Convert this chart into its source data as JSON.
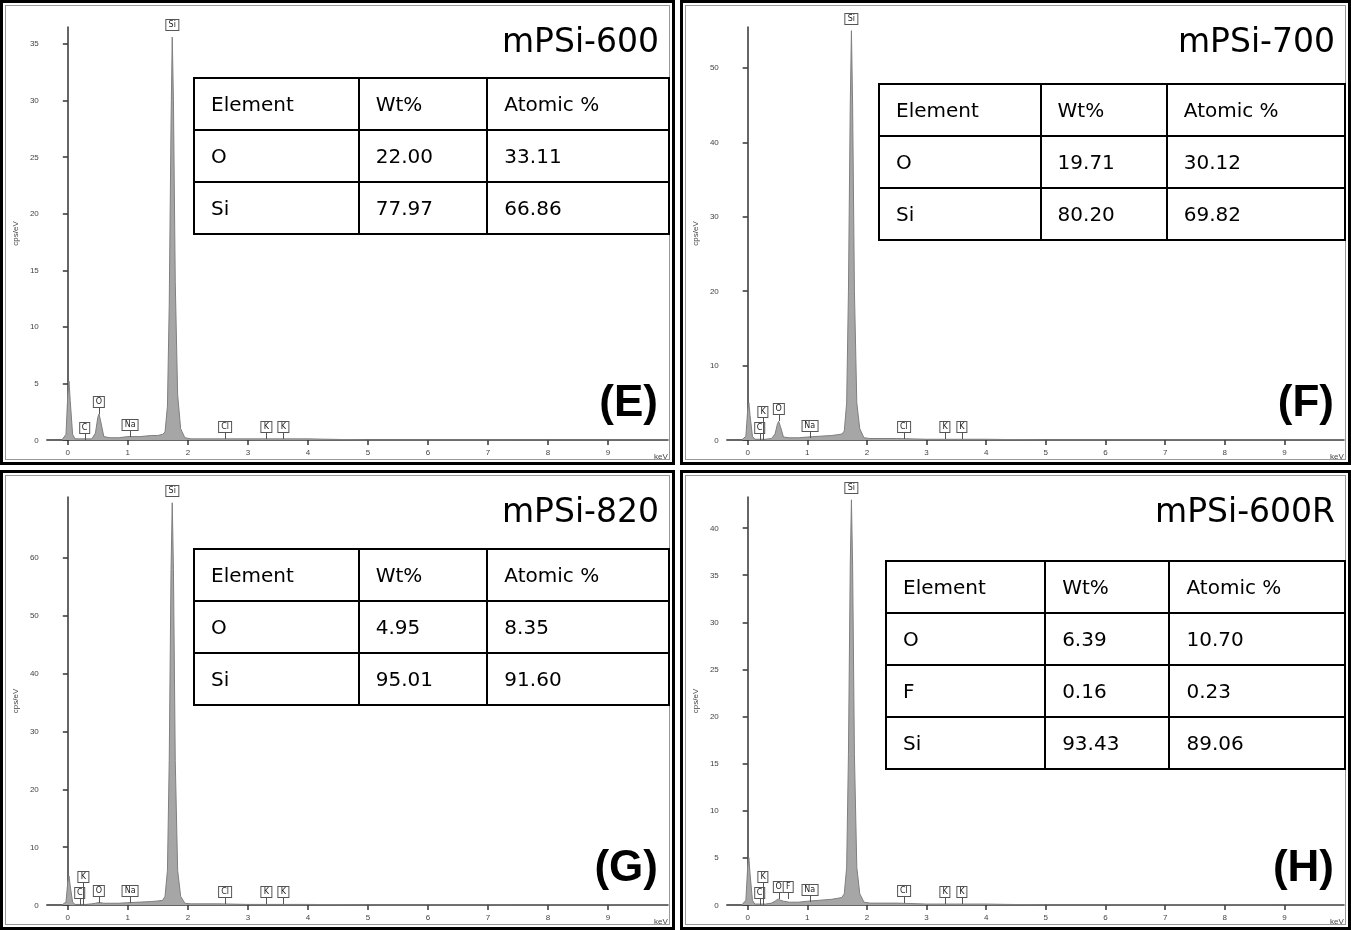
{
  "chart_data": [
    {
      "type": "area",
      "title": "mPSi-600",
      "xlabel": "keV",
      "ylabel": "cps/eV",
      "color": "#a6a6a6",
      "x": [
        -0.1,
        -0.03,
        0,
        0.02,
        0.04,
        0.08,
        0.12,
        0.2,
        0.3,
        0.4,
        0.46,
        0.5,
        0.52,
        0.55,
        0.6,
        0.7,
        0.85,
        1.0,
        1.2,
        1.4,
        1.5,
        1.58,
        1.62,
        1.66,
        1.69,
        1.72,
        1.74,
        1.76,
        1.79,
        1.83,
        1.88,
        1.95,
        2.05,
        2.5,
        3,
        4,
        5,
        6,
        7,
        8,
        9,
        10
      ],
      "values": [
        0,
        0.5,
        4,
        5.2,
        3.5,
        0.5,
        0.1,
        0.1,
        0.1,
        0.1,
        0.6,
        2.0,
        2.3,
        1.6,
        0.3,
        0.2,
        0.2,
        0.3,
        0.3,
        0.4,
        0.4,
        0.5,
        0.7,
        3,
        12,
        28,
        35.6,
        30,
        14,
        4,
        1,
        0.2,
        0.1,
        0.1,
        0.1,
        0.1,
        0,
        0,
        0,
        0,
        0,
        0
      ],
      "xlim": [
        -0.35,
        10.0
      ],
      "xticks": [
        0,
        1,
        2,
        3,
        4,
        5,
        6,
        7,
        8,
        9
      ],
      "ylim": [
        0,
        36.5
      ],
      "yticks": [
        0,
        5,
        10,
        15,
        20,
        25,
        30,
        35
      ],
      "annotations": [
        "(E)",
        "Element",
        "Wt%",
        "Atomic %",
        "O",
        "22.00",
        "33.11",
        "Si",
        "77.97",
        "66.86",
        {
          "text": "C",
          "x": 0.28,
          "y": 0
        },
        {
          "text": "O",
          "x": 0.52,
          "y": 2.3
        },
        {
          "text": "Na",
          "x": 1.04,
          "y": 0.3
        },
        {
          "text": "Si",
          "x": 1.74,
          "y": 35.6
        },
        {
          "text": "Cl",
          "x": 2.62,
          "y": 0.1
        },
        {
          "text": "K",
          "x": 3.31,
          "y": 0.1
        },
        {
          "text": "K",
          "x": 3.59,
          "y": 0.1
        }
      ]
    },
    {
      "type": "area",
      "title": "mPSi-700",
      "xlabel": "keV",
      "ylabel": "cps/eV",
      "color": "#a6a6a6",
      "x": [
        -0.1,
        -0.03,
        0,
        0.02,
        0.04,
        0.08,
        0.12,
        0.2,
        0.3,
        0.4,
        0.46,
        0.5,
        0.52,
        0.55,
        0.6,
        0.7,
        0.85,
        1.0,
        1.2,
        1.4,
        1.5,
        1.58,
        1.62,
        1.66,
        1.69,
        1.72,
        1.74,
        1.76,
        1.79,
        1.83,
        1.88,
        1.95,
        2.05,
        2.5,
        3,
        4,
        5,
        6,
        7,
        8,
        9,
        10
      ],
      "values": [
        0,
        0.5,
        4,
        5,
        3.3,
        0.5,
        0.1,
        0.1,
        0.1,
        0.2,
        0.8,
        2.2,
        2.5,
        1.8,
        0.4,
        0.3,
        0.3,
        0.4,
        0.5,
        0.6,
        0.7,
        0.8,
        1.2,
        5,
        20,
        45,
        55,
        45,
        20,
        5,
        1.5,
        0.3,
        0.2,
        0.2,
        0.1,
        0.1,
        0,
        0,
        0,
        0,
        0,
        0
      ],
      "xlim": [
        -0.35,
        10.0
      ],
      "xticks": [
        0,
        1,
        2,
        3,
        4,
        5,
        6,
        7,
        8,
        9
      ],
      "ylim": [
        0,
        55.5
      ],
      "yticks": [
        0,
        10,
        20,
        30,
        40,
        50
      ],
      "annotations": [
        "(F)",
        "Element",
        "Wt%",
        "Atomic %",
        "O",
        "19.71",
        "30.12",
        "Si",
        "80.20",
        "69.82",
        {
          "text": "C",
          "x": 0.2,
          "y": 0
        },
        {
          "text": "K",
          "x": 0.26,
          "y": 0
        },
        {
          "text": "O",
          "x": 0.52,
          "y": 2.5
        },
        {
          "text": "Na",
          "x": 1.04,
          "y": 0.3
        },
        {
          "text": "Si",
          "x": 1.74,
          "y": 55
        },
        {
          "text": "Cl",
          "x": 2.62,
          "y": 0.2
        },
        {
          "text": "K",
          "x": 3.31,
          "y": 0.1
        },
        {
          "text": "K",
          "x": 3.59,
          "y": 0.1
        }
      ]
    },
    {
      "type": "area",
      "title": "mPSi-820",
      "xlabel": "keV",
      "ylabel": "cps/eV",
      "color": "#a6a6a6",
      "x": [
        -0.1,
        -0.03,
        0,
        0.02,
        0.04,
        0.08,
        0.12,
        0.2,
        0.3,
        0.4,
        0.46,
        0.5,
        0.52,
        0.55,
        0.6,
        0.7,
        0.85,
        1.0,
        1.2,
        1.4,
        1.5,
        1.58,
        1.62,
        1.66,
        1.69,
        1.72,
        1.74,
        1.76,
        1.79,
        1.83,
        1.88,
        1.95,
        2.05,
        2.5,
        3,
        4,
        5,
        6,
        7,
        8,
        9,
        10
      ],
      "values": [
        0,
        0.5,
        4,
        5,
        3.3,
        0.5,
        0.1,
        0.1,
        0.1,
        0.2,
        0.3,
        0.4,
        0.4,
        0.4,
        0.3,
        0.3,
        0.3,
        0.4,
        0.5,
        0.6,
        0.7,
        0.8,
        1.5,
        6,
        25,
        58,
        69.5,
        58,
        25,
        6,
        1.5,
        0.3,
        0.2,
        0.2,
        0.1,
        0.1,
        0,
        0,
        0,
        0,
        0,
        0
      ],
      "xlim": [
        -0.35,
        10.0
      ],
      "xticks": [
        0,
        1,
        2,
        3,
        4,
        5,
        6,
        7,
        8,
        9
      ],
      "ylim": [
        0,
        70.5
      ],
      "yticks": [
        0,
        10,
        20,
        30,
        40,
        50,
        60
      ],
      "annotations": [
        "(G)",
        "Element",
        "Wt%",
        "Atomic %",
        "O",
        "4.95",
        "8.35",
        "Si",
        "95.01",
        "91.60",
        {
          "text": "C",
          "x": 0.2,
          "y": 0
        },
        {
          "text": "K",
          "x": 0.26,
          "y": 0
        },
        {
          "text": "O",
          "x": 0.52,
          "y": 0.4
        },
        {
          "text": "Na",
          "x": 1.04,
          "y": 0.3
        },
        {
          "text": "Si",
          "x": 1.74,
          "y": 69.5
        },
        {
          "text": "Cl",
          "x": 2.62,
          "y": 0.2
        },
        {
          "text": "K",
          "x": 3.31,
          "y": 0.1
        },
        {
          "text": "K",
          "x": 3.59,
          "y": 0.1
        }
      ]
    },
    {
      "type": "area",
      "title": "mPSi-600R",
      "xlabel": "keV",
      "ylabel": "cps/eV",
      "color": "#a6a6a6",
      "x": [
        -0.1,
        -0.03,
        0,
        0.02,
        0.04,
        0.08,
        0.12,
        0.2,
        0.3,
        0.4,
        0.46,
        0.5,
        0.52,
        0.55,
        0.6,
        0.7,
        0.85,
        1.0,
        1.2,
        1.4,
        1.5,
        1.58,
        1.62,
        1.66,
        1.69,
        1.72,
        1.74,
        1.76,
        1.79,
        1.83,
        1.88,
        1.95,
        2.05,
        2.5,
        3,
        4,
        5,
        6,
        7,
        8,
        9,
        10
      ],
      "values": [
        0,
        0.5,
        4,
        5,
        3.3,
        0.5,
        0.1,
        0.1,
        0.1,
        0.2,
        0.4,
        0.6,
        0.6,
        0.5,
        0.4,
        0.3,
        0.3,
        0.4,
        0.5,
        0.6,
        0.7,
        0.8,
        1.2,
        4,
        16,
        36,
        43,
        36,
        16,
        4,
        1.2,
        0.3,
        0.2,
        0.2,
        0.1,
        0.1,
        0,
        0,
        0,
        0,
        0,
        0
      ],
      "xlim": [
        -0.35,
        10.0
      ],
      "xticks": [
        0,
        1,
        2,
        3,
        4,
        5,
        6,
        7,
        8,
        9
      ],
      "ylim": [
        0,
        43.3
      ],
      "yticks": [
        0,
        5,
        10,
        15,
        20,
        25,
        30,
        35,
        40
      ],
      "annotations": [
        "(H)",
        "Element",
        "Wt%",
        "Atomic %",
        "O",
        "6.39",
        "10.70",
        "F",
        "0.16",
        "0.23",
        "Si",
        "93.43",
        "89.06",
        {
          "text": "C",
          "x": 0.2,
          "y": 0
        },
        {
          "text": "K",
          "x": 0.26,
          "y": 0
        },
        {
          "text": "O",
          "x": 0.52,
          "y": 0.6
        },
        {
          "text": "F",
          "x": 0.68,
          "y": 0.6
        },
        {
          "text": "Na",
          "x": 1.04,
          "y": 0.3
        },
        {
          "text": "Si",
          "x": 1.74,
          "y": 43
        },
        {
          "text": "Cl",
          "x": 2.62,
          "y": 0.2
        },
        {
          "text": "K",
          "x": 3.31,
          "y": 0.1
        },
        {
          "text": "K",
          "x": 3.59,
          "y": 0.1
        }
      ]
    }
  ]
}
